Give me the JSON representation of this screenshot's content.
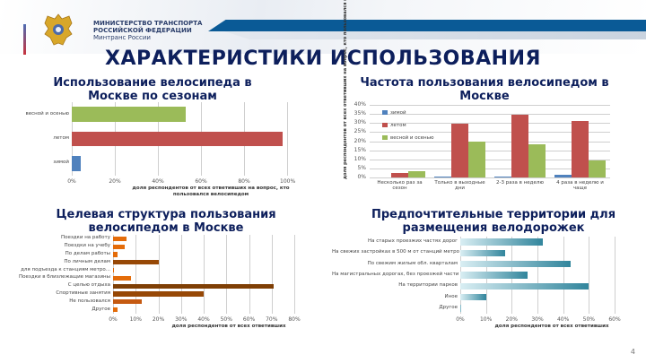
{
  "header": {
    "ministry_line1": "МИНИСТЕРСТВО ТРАНСПОРТА",
    "ministry_line2": "РОССИЙСКОЙ ФЕДЕРАЦИИ",
    "ministry_line3": "Минтранс России",
    "title": "ХАРАКТЕРИСТИКИ ИСПОЛЬЗОВАНИЯ"
  },
  "colors": {
    "title": "#0d1f5c",
    "band": "#0a5a96",
    "green": "#9bbb59",
    "red": "#c0504d",
    "blue": "#4f81bd",
    "orange_light": "#e46c0a",
    "orange_dark": "#974806",
    "teal": "#31859c"
  },
  "page_number": "4",
  "chart_data": [
    {
      "type": "bar",
      "orientation": "horizontal",
      "title": "Использование велосипеда в Москве по сезонам",
      "categories": [
        "весной и осенью",
        "летом",
        "зимой"
      ],
      "values": [
        53,
        98,
        4
      ],
      "colors": [
        "#9bbb59",
        "#c0504d",
        "#4f81bd"
      ],
      "xlabel": "доля респондентов от всех ответивших на вопрос, кто пользовался велосипедом",
      "xticks": [
        "0%",
        "20%",
        "40%",
        "60%",
        "80%",
        "100%"
      ],
      "xlim": [
        0,
        100
      ],
      "grid": true
    },
    {
      "type": "bar",
      "orientation": "vertical",
      "title": "Частота пользования велосипедом в Москве",
      "categories": [
        "Несколько раз за сезон",
        "Только в выходные дни",
        "2-3 раза в неделю",
        "4 раза в неделю и чаще"
      ],
      "series": [
        {
          "name": "зимой",
          "values": [
            0,
            0.5,
            0.3,
            1.5
          ],
          "color": "#4f81bd"
        },
        {
          "name": "летом",
          "values": [
            2.5,
            29.5,
            34.5,
            31
          ],
          "color": "#c0504d"
        },
        {
          "name": "весной и осенью",
          "values": [
            3.5,
            20,
            18.5,
            9.5
          ],
          "color": "#9bbb59"
        }
      ],
      "ylabel": "доля респондентов от всех ответивших на вопрос, кто пользовался велосипедом",
      "yticks": [
        "0%",
        "5%",
        "10%",
        "15%",
        "20%",
        "25%",
        "30%",
        "35%",
        "40%"
      ],
      "ylim": [
        0,
        40
      ],
      "legend_position": "top-left",
      "grid": true
    },
    {
      "type": "bar",
      "orientation": "horizontal",
      "title": "Целевая структура пользования велосипедом в Москве",
      "categories": [
        "Поездки на работу",
        "Поездки на учебу",
        "По делам работы",
        "По личным делам",
        "для подъезда к станциям метро...",
        "Поездки в близлежащие магазины",
        "С целью отдыха",
        "Спортивные занятия",
        "Не пользовался",
        "Другое"
      ],
      "values": [
        6,
        5,
        2,
        20,
        0.5,
        8,
        71,
        40,
        12.5,
        2
      ],
      "colors": [
        "#e46c0a",
        "#e46c0a",
        "#e46c0a",
        "#974806",
        "#e46c0a",
        "#e46c0a",
        "#7f3f05",
        "#974806",
        "#c55a11",
        "#e46c0a"
      ],
      "xlabel": "доля респондентов от всех ответивших",
      "xticks": [
        "0%",
        "10%",
        "20%",
        "30%",
        "40%",
        "50%",
        "60%",
        "70%",
        "80%"
      ],
      "xlim": [
        0,
        80
      ],
      "grid": true
    },
    {
      "type": "bar",
      "orientation": "horizontal",
      "title": "Предпочтительные территории для размещения велодорожек",
      "categories": [
        "На старых проезжих частях дорог",
        "На свежих застройках в 500 м от станций метро",
        "По свежим жилым обл. кварталам",
        "На магистральных дорогах, без проезжей части",
        "На территории парков",
        "Иное",
        "Другое"
      ],
      "values": [
        32,
        17.5,
        43,
        26,
        50,
        10,
        0.5
      ],
      "colors": [
        "#31859c",
        "#31859c",
        "#31859c",
        "#31859c",
        "#31859c",
        "#31859c",
        "#31859c"
      ],
      "xlabel": "доля респондентов от всех ответивших",
      "xticks": [
        "0%",
        "10%",
        "20%",
        "30%",
        "40%",
        "50%",
        "60%"
      ],
      "xlim": [
        0,
        60
      ],
      "grid": true
    }
  ]
}
